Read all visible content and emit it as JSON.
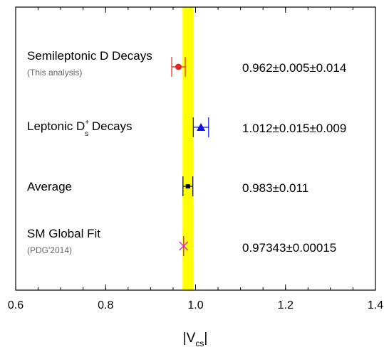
{
  "chart_data": {
    "type": "scatter",
    "title": "",
    "xlabel": "|V",
    "xlabel_sub": "cs",
    "xlabel_suffix": "|",
    "xlim": [
      0.6,
      1.4
    ],
    "xticks": [
      "0.6",
      "0.8",
      "1.0",
      "1.2",
      "1.4"
    ],
    "xtick_values": [
      0.6,
      0.8,
      1.0,
      1.2,
      1.4
    ],
    "band": {
      "center": 0.983,
      "halfwidth": 0.011,
      "color": "#ffff00"
    },
    "entries": [
      {
        "label": "Semileptonic D Decays",
        "sublabel": "(This analysis)",
        "value": 0.962,
        "err": 0.015,
        "display": "0.962±0.005±0.014",
        "marker": "circle",
        "color": "#e8231f"
      },
      {
        "label_main": "Leptonic D",
        "label_sup": "+",
        "label_sub": "s",
        "label_end": " Decays",
        "value": 1.012,
        "err": 0.017,
        "display": "1.012±0.015±0.009",
        "marker": "triangle",
        "color": "#1010e0"
      },
      {
        "label": "Average",
        "value": 0.983,
        "err": 0.011,
        "display": "0.983±0.011",
        "marker": "square",
        "color": "#000000"
      },
      {
        "label": "SM Global Fit",
        "sublabel": "(PDG'2014)",
        "value": 0.97343,
        "err": 0.00015,
        "display": "0.97343±0.00015",
        "marker": "cross",
        "color": "#e020d0"
      }
    ]
  }
}
